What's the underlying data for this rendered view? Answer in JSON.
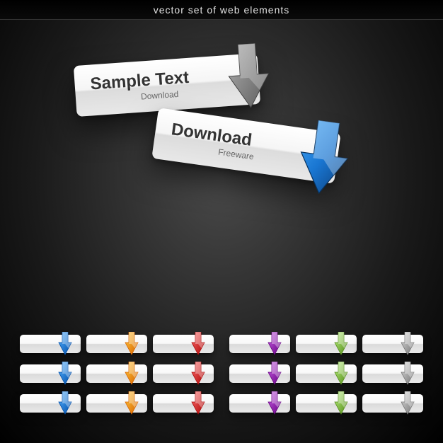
{
  "header": {
    "title": "vector set of web elements"
  },
  "featured": [
    {
      "title": "Sample Text",
      "subtitle": "Download",
      "arrow_color": "#7a7a7a",
      "arrow_dark": "#4a4a4a"
    },
    {
      "title": "Download",
      "subtitle": "Freeware",
      "arrow_color": "#1976d2",
      "arrow_dark": "#0d3f7a"
    }
  ],
  "grid_left_colors": [
    [
      "#1976d2",
      "#ff8c00",
      "#d32f2f"
    ],
    [
      "#1976d2",
      "#ff8c00",
      "#d32f2f"
    ],
    [
      "#1976d2",
      "#ff8c00",
      "#d32f2f"
    ]
  ],
  "grid_right_colors": [
    [
      "#8e24aa",
      "#7cb342",
      "#9e9e9e"
    ],
    [
      "#8e24aa",
      "#7cb342",
      "#9e9e9e"
    ],
    [
      "#8e24aa",
      "#7cb342",
      "#9e9e9e"
    ]
  ],
  "styling": {
    "button_bg": "#eeeeee",
    "background_center": "#4a4a4a",
    "background_edge": "#000000",
    "text_primary": "#333333",
    "text_secondary": "#666666",
    "header_text": "#e0e0e0",
    "large_button_size": [
      260,
      72
    ],
    "small_button_size": [
      86,
      26
    ],
    "title_fontsize": 24,
    "subtitle_fontsize": 12,
    "header_fontsize": 14
  }
}
